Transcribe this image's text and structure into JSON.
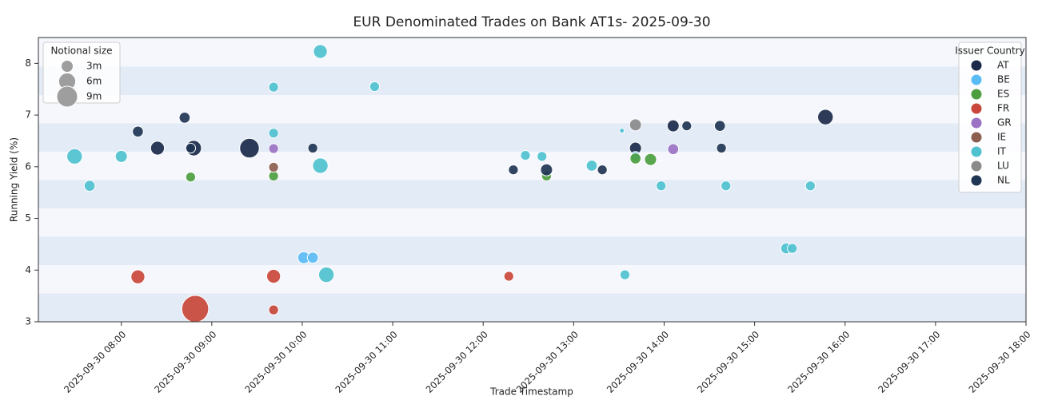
{
  "chart_data": {
    "type": "scatter",
    "title": "EUR Denominated Trades on Bank AT1s- 2025-09-30",
    "x_label": "Trade Timestamp",
    "y_label": "Running Yield (%)",
    "xlim": [
      "2025-09-30 07:05",
      "2025-09-30 18:00"
    ],
    "xticks": [
      "2025-09-30 08:00",
      "2025-09-30 09:00",
      "2025-09-30 10:00",
      "2025-09-30 11:00",
      "2025-09-30 12:00",
      "2025-09-30 13:00",
      "2025-09-30 14:00",
      "2025-09-30 15:00",
      "2025-09-30 16:00",
      "2025-09-30 17:00",
      "2025-09-30 18:00"
    ],
    "ylim": [
      3,
      8.5
    ],
    "yticks": [
      3,
      4,
      5,
      6,
      7,
      8
    ],
    "size_legend": {
      "title": "Notional size",
      "sizes": [
        {
          "value": 3,
          "label": "3m"
        },
        {
          "value": 6,
          "label": "6m"
        },
        {
          "value": 9,
          "label": "9m"
        }
      ]
    },
    "legend": {
      "title": "Issuer Country",
      "position": "upper right"
    },
    "series": [
      {
        "name": "AT",
        "color": "#1b2a4a",
        "x": [
          "2025-09-30 08:24",
          "2025-09-30 08:48",
          "2025-09-30 09:25",
          "2025-09-30 13:41",
          "2025-09-30 14:06",
          "2025-09-30 15:47"
        ],
        "values": [
          6.36,
          6.36,
          6.36,
          6.36,
          6.79,
          6.96
        ],
        "sizes": [
          4,
          5,
          8,
          3,
          3,
          5
        ]
      },
      {
        "name": "BE",
        "color": "#5bbcf5",
        "x": [
          "2025-09-30 10:01",
          "2025-09-30 10:07",
          "2025-09-30 13:41"
        ],
        "values": [
          4.24,
          4.24,
          6.2
        ],
        "sizes": [
          3,
          2.5,
          2
        ]
      },
      {
        "name": "ES",
        "color": "#4c9e3f",
        "x": [
          "2025-09-30 08:46",
          "2025-09-30 09:41",
          "2025-09-30 12:42",
          "2025-09-30 13:41",
          "2025-09-30 13:51"
        ],
        "values": [
          5.8,
          5.82,
          5.82,
          6.16,
          6.14
        ],
        "sizes": [
          2,
          2,
          2,
          2.5,
          3
        ]
      },
      {
        "name": "FR",
        "color": "#c9473a",
        "x": [
          "2025-09-30 08:11",
          "2025-09-30 08:49",
          "2025-09-30 09:41",
          "2025-09-30 09:41",
          "2025-09-30 12:17"
        ],
        "values": [
          3.87,
          3.25,
          3.88,
          3.23,
          3.88
        ],
        "sizes": [
          4,
          15,
          4,
          2,
          2
        ]
      },
      {
        "name": "GR",
        "color": "#9b72c4",
        "x": [
          "2025-09-30 09:41",
          "2025-09-30 14:06"
        ],
        "values": [
          6.35,
          6.34
        ],
        "sizes": [
          2,
          2.5
        ]
      },
      {
        "name": "IE",
        "color": "#8c5e4f",
        "x": [
          "2025-09-30 09:41"
        ],
        "values": [
          5.99
        ],
        "sizes": [
          2
        ]
      },
      {
        "name": "IT",
        "color": "#4fc1cf",
        "x": [
          "2025-09-30 07:29",
          "2025-09-30 07:39",
          "2025-09-30 08:00",
          "2025-09-30 09:41",
          "2025-09-30 09:41",
          "2025-09-30 10:12",
          "2025-09-30 10:12",
          "2025-09-30 10:16",
          "2025-09-30 10:48",
          "2025-09-30 12:28",
          "2025-09-30 12:39",
          "2025-09-30 13:12",
          "2025-09-30 13:32",
          "2025-09-30 13:34",
          "2025-09-30 13:58",
          "2025-09-30 14:41",
          "2025-09-30 15:21",
          "2025-09-30 15:25",
          "2025-09-30 15:37"
        ],
        "values": [
          6.2,
          5.63,
          6.2,
          7.54,
          6.65,
          8.23,
          6.02,
          3.91,
          7.55,
          6.22,
          6.2,
          6.02,
          6.7,
          3.91,
          5.63,
          5.63,
          4.42,
          4.42,
          5.63
        ],
        "sizes": [
          5,
          2.5,
          3,
          2,
          2,
          4,
          5,
          5,
          2,
          2,
          2,
          2.5,
          0.5,
          2,
          2,
          2,
          2.5,
          2,
          2
        ]
      },
      {
        "name": "LU",
        "color": "#8a8a8a",
        "x": [
          "2025-09-30 13:41"
        ],
        "values": [
          6.81
        ],
        "sizes": [
          3
        ]
      },
      {
        "name": "NL",
        "color": "#1f3554",
        "x": [
          "2025-09-30 08:11",
          "2025-09-30 08:42",
          "2025-09-30 08:46",
          "2025-09-30 10:07",
          "2025-09-30 12:20",
          "2025-09-30 12:42",
          "2025-09-30 13:19",
          "2025-09-30 14:15",
          "2025-09-30 14:37",
          "2025-09-30 14:38"
        ],
        "values": [
          6.68,
          6.95,
          6.36,
          6.36,
          5.94,
          5.94,
          5.94,
          6.79,
          6.79,
          6.36
        ],
        "sizes": [
          2.5,
          2.5,
          2,
          2,
          2,
          3,
          2,
          2,
          2.5,
          2
        ]
      }
    ]
  }
}
